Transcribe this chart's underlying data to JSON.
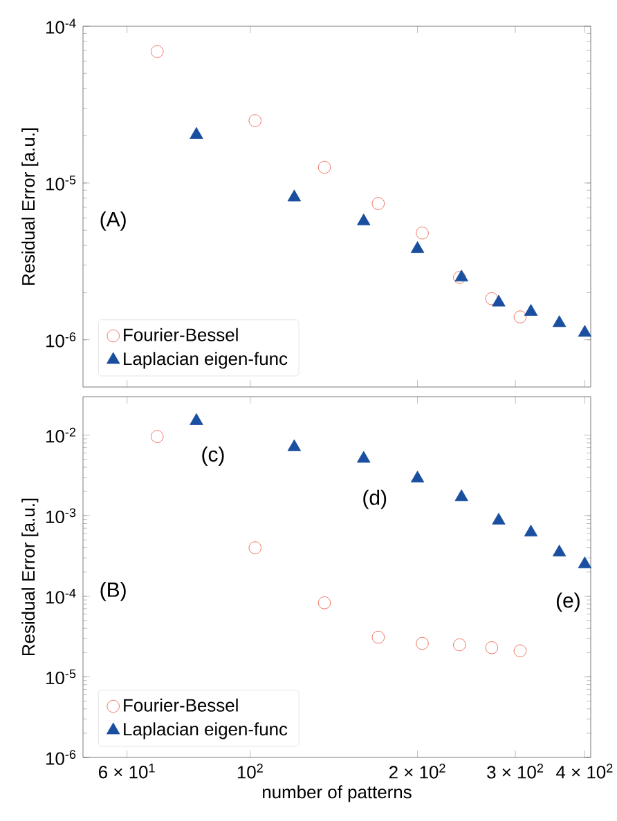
{
  "chart_data": [
    {
      "type": "scatter",
      "ylabel": "Residual Error [a.u.]",
      "log": "xy",
      "xlim": [
        50,
        410
      ],
      "ylim": [
        5e-07,
        0.0001
      ],
      "xticks": [
        60,
        100,
        200,
        300,
        400
      ],
      "yticks": [
        {
          "value": 1e-06,
          "label": "10$^{-6}$"
        },
        {
          "value": 1e-05,
          "label": "10$^{-5}$"
        },
        {
          "value": 0.0001,
          "label": "10$^{-4}$"
        }
      ],
      "tick_labels": "y",
      "grid": false,
      "legend": "bottom left",
      "series": [
        {
          "name": "Fourier-Bessel",
          "color": "#e8503a",
          "marker": "circle",
          "x": [
            68,
            102,
            136,
            170,
            204,
            238,
            272,
            306
          ],
          "values": [
            6.9e-05,
            2.5e-05,
            1.26e-05,
            7.4e-06,
            4.8e-06,
            2.5e-06,
            1.83e-06,
            1.4e-06
          ]
        },
        {
          "name": "Laplacian eigen-func",
          "color": "#1a4fa0",
          "marker": "triangle",
          "x": [
            80,
            120,
            160,
            200,
            240,
            280,
            320,
            360,
            400
          ],
          "values": [
            2.03e-05,
            8.1e-06,
            5.7e-06,
            3.8e-06,
            2.5e-06,
            1.73e-06,
            1.51e-06,
            1.28e-06,
            1.11e-06
          ]
        }
      ],
      "annotations": [
        "(A)"
      ]
    },
    {
      "type": "scatter",
      "xlabel": "number of patterns",
      "ylabel": "Residual Error [a.u.]",
      "log": "xy",
      "xlim": [
        50,
        410
      ],
      "ylim": [
        1e-06,
        0.03
      ],
      "xticks": [
        {
          "value": 60,
          "label": "6 × 10$^{1}$"
        },
        {
          "value": 100,
          "label": "10$^{2}$"
        },
        {
          "value": 200,
          "label": "2 × 10$^{2}$"
        },
        {
          "value": 300,
          "label": "3 × 10$^{2}$"
        },
        {
          "value": 400,
          "label": "4 × 10$^{2}$"
        }
      ],
      "yticks": [
        {
          "value": 1e-06,
          "label": "10$^{-6}$"
        },
        {
          "value": 1e-05,
          "label": "10$^{-5}$"
        },
        {
          "value": 0.0001,
          "label": "10$^{-4}$"
        },
        {
          "value": 0.001,
          "label": "10$^{-3}$"
        },
        {
          "value": 0.01,
          "label": "10$^{-2}$"
        }
      ],
      "grid": false,
      "legend": "bottom left",
      "series": [
        {
          "name": "Fourier-Bessel",
          "color": "#e8503a",
          "marker": "circle",
          "x": [
            68,
            102,
            136,
            170,
            204,
            238,
            272,
            306
          ],
          "values": [
            0.0096,
            0.0004,
            8.3e-05,
            3.1e-05,
            2.6e-05,
            2.5e-05,
            2.3e-05,
            2.1e-05
          ]
        },
        {
          "name": "Laplacian eigen-func",
          "color": "#1a4fa0",
          "marker": "triangle",
          "x": [
            80,
            120,
            160,
            200,
            240,
            280,
            320,
            360,
            400
          ],
          "values": [
            0.015,
            0.0071,
            0.0051,
            0.0029,
            0.0017,
            0.00087,
            0.00062,
            0.00035,
            0.00025
          ]
        }
      ],
      "annotations": [
        "(B)",
        {
          "text": "(c)",
          "x": 80,
          "y": 0.015
        },
        {
          "text": "(d)",
          "x": 160,
          "y": 0.0051
        },
        {
          "text": "(e)",
          "x": 400,
          "y": 0.00025
        }
      ]
    }
  ]
}
